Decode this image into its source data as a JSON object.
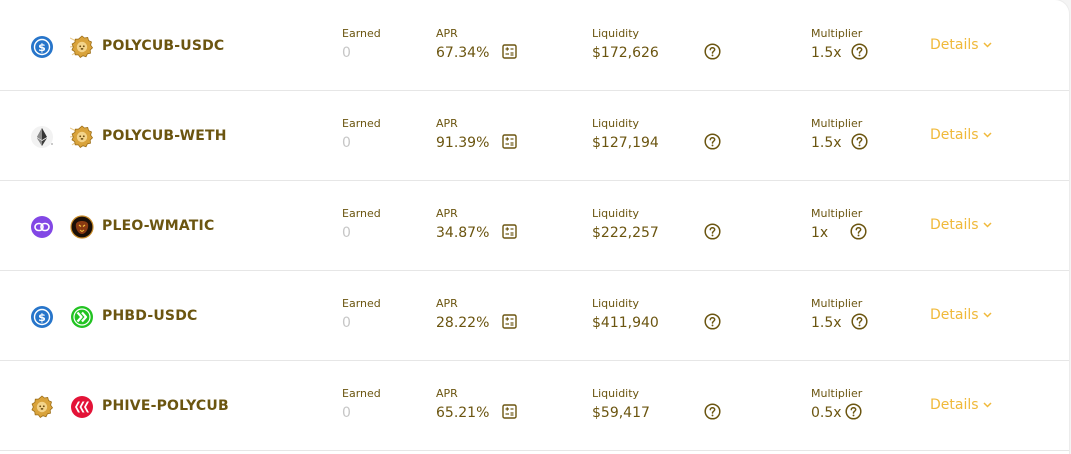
{
  "labels": {
    "earned": "Earned",
    "apr": "APR",
    "liquidity": "Liquidity",
    "multiplier": "Multiplier",
    "details": "Details"
  },
  "colors": {
    "text_primary": "#6b5510",
    "text_muted": "#c6c6c6",
    "accent": "#f0b93a",
    "usdc_blue": "#2775ca",
    "matic_purple": "#8247e5",
    "hbd_green": "#22c322",
    "hive_red": "#e31337",
    "polycub_gold": "#d9a33c"
  },
  "farms": [
    {
      "pair": "POLYCUB-USDC",
      "earned": "0",
      "apr": "67.34%",
      "liquidity": "$172,626",
      "multiplier": "1.5x",
      "token1_icon": "usdc-icon",
      "token2_icon": "polycub-icon"
    },
    {
      "pair": "POLYCUB-WETH",
      "earned": "0",
      "apr": "91.39%",
      "liquidity": "$127,194",
      "multiplier": "1.5x",
      "token1_icon": "eth-icon",
      "token2_icon": "polycub-icon"
    },
    {
      "pair": "PLEO-WMATIC",
      "earned": "0",
      "apr": "34.87%",
      "liquidity": "$222,257",
      "multiplier": "1x",
      "token1_icon": "matic-icon",
      "token2_icon": "pleo-icon"
    },
    {
      "pair": "PHBD-USDC",
      "earned": "0",
      "apr": "28.22%",
      "liquidity": "$411,940",
      "multiplier": "1.5x",
      "token1_icon": "usdc-icon",
      "token2_icon": "hbd-icon"
    },
    {
      "pair": "PHIVE-POLYCUB",
      "earned": "0",
      "apr": "65.21%",
      "liquidity": "$59,417",
      "multiplier": "0.5x",
      "token1_icon": "polycub-icon",
      "token2_icon": "hive-icon"
    }
  ]
}
